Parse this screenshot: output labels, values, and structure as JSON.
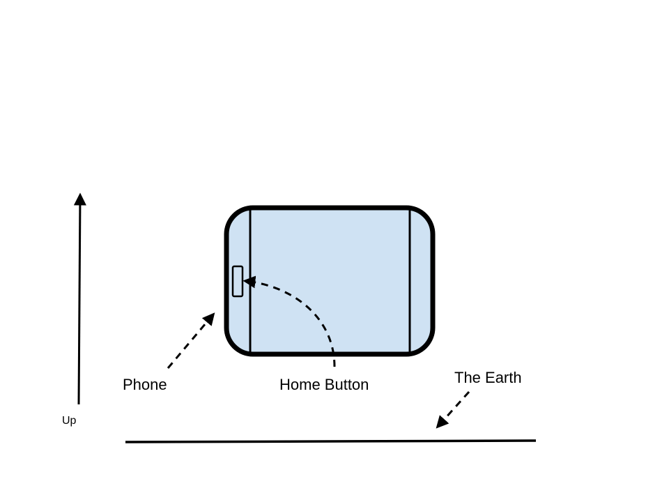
{
  "labels": {
    "up": "Up",
    "phone": "Phone",
    "home_button": "Home Button",
    "earth": "The Earth"
  },
  "colors": {
    "phone_fill": "#cfe2f3",
    "stroke": "#000000",
    "background": "#ffffff"
  }
}
